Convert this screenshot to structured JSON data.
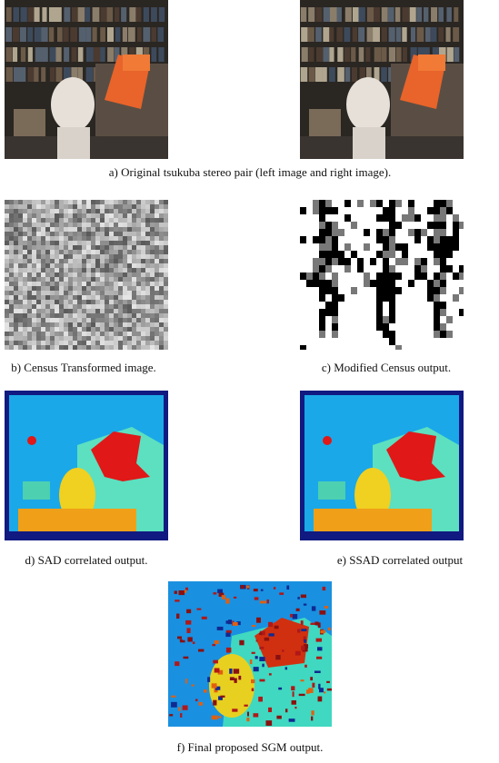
{
  "figure": {
    "captions": {
      "a": "a) Original tsukuba stereo pair (left image and right image).",
      "b": "b) Census Transformed image.",
      "c": "c) Modified Census output.",
      "d": "d) SAD correlated output.",
      "e": "e) SSAD correlated output",
      "f": "f) Final proposed SGM output."
    }
  }
}
